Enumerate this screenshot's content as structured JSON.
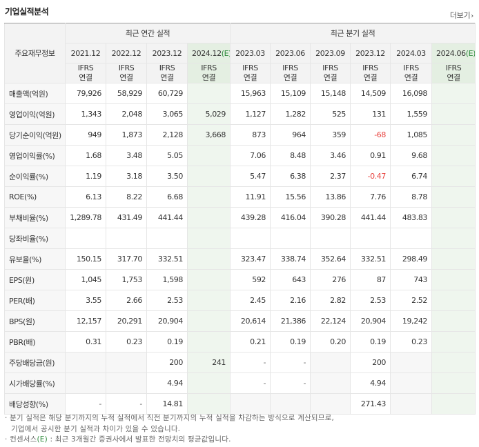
{
  "section_title": "기업실적분석",
  "more_link": "더보기",
  "corner_label": "주요재무정보",
  "group_annual": "최근 연간 실적",
  "group_quarter": "최근 분기 실적",
  "periods": [
    "2021.12",
    "2022.12",
    "2023.12",
    "2024.12",
    "2023.03",
    "2023.06",
    "2023.09",
    "2023.12",
    "2024.03",
    "2024.06"
  ],
  "estimate_suffix": "(E)",
  "ifrs_line1": "IFRS",
  "ifrs_line2": "연결",
  "rows": [
    {
      "label": "매출액(억원)",
      "values": [
        "79,926",
        "58,929",
        "60,729",
        "",
        "15,963",
        "15,109",
        "15,148",
        "14,509",
        "16,098",
        ""
      ]
    },
    {
      "label": "영업이익(억원)",
      "values": [
        "1,343",
        "2,048",
        "3,065",
        "5,029",
        "1,127",
        "1,282",
        "525",
        "131",
        "1,559",
        ""
      ]
    },
    {
      "label": "당기순이익(억원)",
      "values": [
        "949",
        "1,873",
        "2,128",
        "3,668",
        "873",
        "964",
        "359",
        "-68",
        "1,085",
        ""
      ]
    },
    {
      "label": "영업이익률(%)",
      "values": [
        "1.68",
        "3.48",
        "5.05",
        "",
        "7.06",
        "8.48",
        "3.46",
        "0.91",
        "9.68",
        ""
      ]
    },
    {
      "label": "순이익률(%)",
      "values": [
        "1.19",
        "3.18",
        "3.50",
        "",
        "5.47",
        "6.38",
        "2.37",
        "-0.47",
        "6.74",
        ""
      ]
    },
    {
      "label": "ROE(%)",
      "values": [
        "6.13",
        "8.22",
        "6.68",
        "",
        "11.91",
        "15.56",
        "13.86",
        "7.76",
        "8.78",
        ""
      ]
    },
    {
      "label": "부채비율(%)",
      "values": [
        "1,289.78",
        "431.49",
        "441.44",
        "",
        "439.28",
        "416.04",
        "390.28",
        "441.44",
        "483.83",
        ""
      ]
    },
    {
      "label": "당좌비율(%)",
      "values": [
        "",
        "",
        "",
        "",
        "",
        "",
        "",
        "",
        "",
        ""
      ]
    },
    {
      "label": "유보율(%)",
      "values": [
        "150.15",
        "317.70",
        "332.51",
        "",
        "323.47",
        "338.74",
        "352.64",
        "332.51",
        "298.49",
        ""
      ]
    },
    {
      "label": "EPS(원)",
      "values": [
        "1,045",
        "1,753",
        "1,598",
        "",
        "592",
        "643",
        "276",
        "87",
        "743",
        ""
      ]
    },
    {
      "label": "PER(배)",
      "values": [
        "3.55",
        "2.66",
        "2.53",
        "",
        "2.45",
        "2.16",
        "2.82",
        "2.53",
        "2.52",
        ""
      ]
    },
    {
      "label": "BPS(원)",
      "values": [
        "12,157",
        "20,291",
        "20,904",
        "",
        "20,614",
        "21,386",
        "22,124",
        "20,904",
        "19,242",
        ""
      ]
    },
    {
      "label": "PBR(배)",
      "values": [
        "0.31",
        "0.23",
        "0.19",
        "",
        "0.21",
        "0.19",
        "0.20",
        "0.19",
        "0.23",
        ""
      ]
    },
    {
      "label": "주당배당금(원)",
      "values": [
        "",
        "",
        "200",
        "241",
        "-",
        "-",
        "",
        "200",
        "",
        ""
      ]
    },
    {
      "label": "시가배당률(%)",
      "values": [
        "",
        "",
        "4.94",
        "",
        "-",
        "-",
        "",
        "4.94",
        "",
        ""
      ]
    },
    {
      "label": "배당성향(%)",
      "values": [
        "-",
        "-",
        "14.81",
        "",
        "",
        "",
        "",
        "271.43",
        "",
        ""
      ]
    }
  ],
  "notes": {
    "line1": "· 분기 실적은 해당 분기까지의 누적 실적에서 직전 분기까지의 누적 실적을 차감하는 방식으로 계산되므로,",
    "line2": "기업에서 공시한 분기 실적과 차이가 있을 수 있습니다.",
    "line3_prefix": "· 컨센서스",
    "line3_mark": "(E)",
    "line3_suffix": " : 최근 3개월간 증권사에서 발표한 전망치의 평균값입니다."
  },
  "colors": {
    "ifrs_orange": "#ee6a16",
    "estimate_green_bg": "#eff6ee",
    "negative_red": "#e8403c",
    "estimate_mark_green": "#2e8b3c"
  }
}
